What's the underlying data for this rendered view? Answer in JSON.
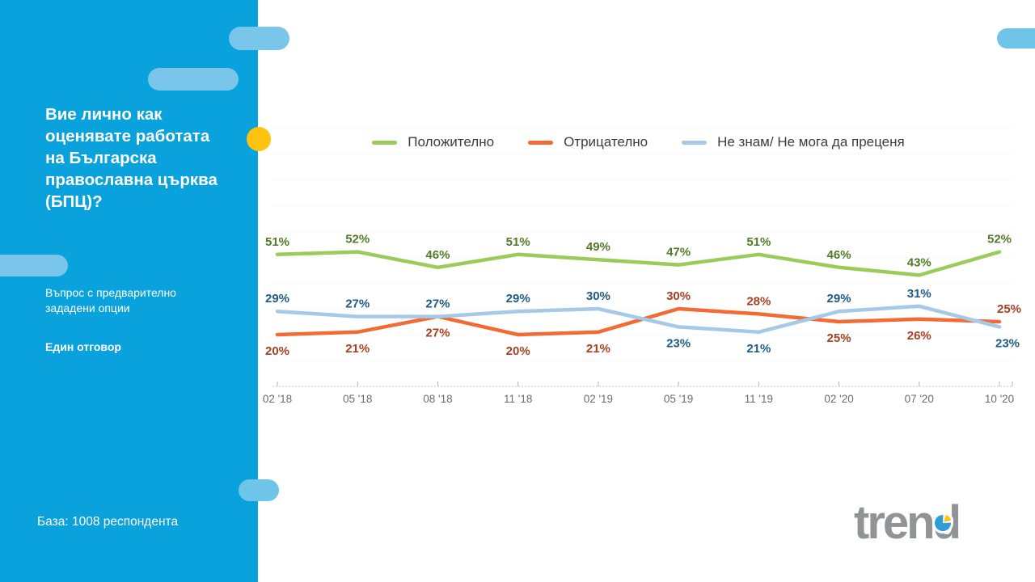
{
  "sidebar": {
    "question": "Вие лично как оценявате работата на Българска православна църква (БПЦ)?",
    "question_type": "Въпрос с предварително зададени опции",
    "answer_mode": "Един отговор",
    "base": "База: 1008 респондента",
    "background_color": "#0AA2DC",
    "accent_circle_color": "#FFC20E",
    "pill_color": "#7AC6EA"
  },
  "logo": {
    "text_pre": "tren",
    "text_d": "d",
    "color": "#919396",
    "pie_blue": "#2F9BD7",
    "pie_yellow": "#FFC20E"
  },
  "chart_data": {
    "type": "line",
    "title": "",
    "xlabel": "",
    "ylabel": "",
    "value_suffix": "%",
    "ylim": [
      0,
      100
    ],
    "grid": "horizontal-dotted",
    "legend_position": "top",
    "categories": [
      "02 '18",
      "05 '18",
      "08 '18",
      "11 '18",
      "02 '19",
      "05 '19",
      "11 '19",
      "02 '20",
      "07 '20",
      "10 '20"
    ],
    "series": [
      {
        "name": "Положително",
        "color": "#9CCB5C",
        "label_color": "#527A28",
        "values": [
          51,
          52,
          46,
          51,
          49,
          47,
          51,
          46,
          43,
          52
        ],
        "label_positions": [
          "above",
          "above",
          "above",
          "above",
          "above",
          "above",
          "above",
          "above",
          "above",
          "above"
        ],
        "end_label_dx": 0
      },
      {
        "name": "Отрицателно",
        "color": "#F26B34",
        "label_color": "#A8401F",
        "values": [
          20,
          21,
          27,
          20,
          21,
          30,
          28,
          25,
          26,
          25
        ],
        "label_positions": [
          "below",
          "below",
          "below",
          "below",
          "below",
          "above",
          "above",
          "below",
          "below",
          "above"
        ],
        "end_label_dx": 12
      },
      {
        "name": "Не знам/ Не мога да преценя",
        "color": "#A6C9E8",
        "label_color": "#1F5C83",
        "values": [
          29,
          27,
          27,
          29,
          30,
          23,
          21,
          29,
          31,
          23
        ],
        "label_positions": [
          "above",
          "above",
          "above",
          "above",
          "above",
          "below",
          "below",
          "above",
          "above",
          "below"
        ],
        "end_label_dx": 10
      }
    ]
  }
}
